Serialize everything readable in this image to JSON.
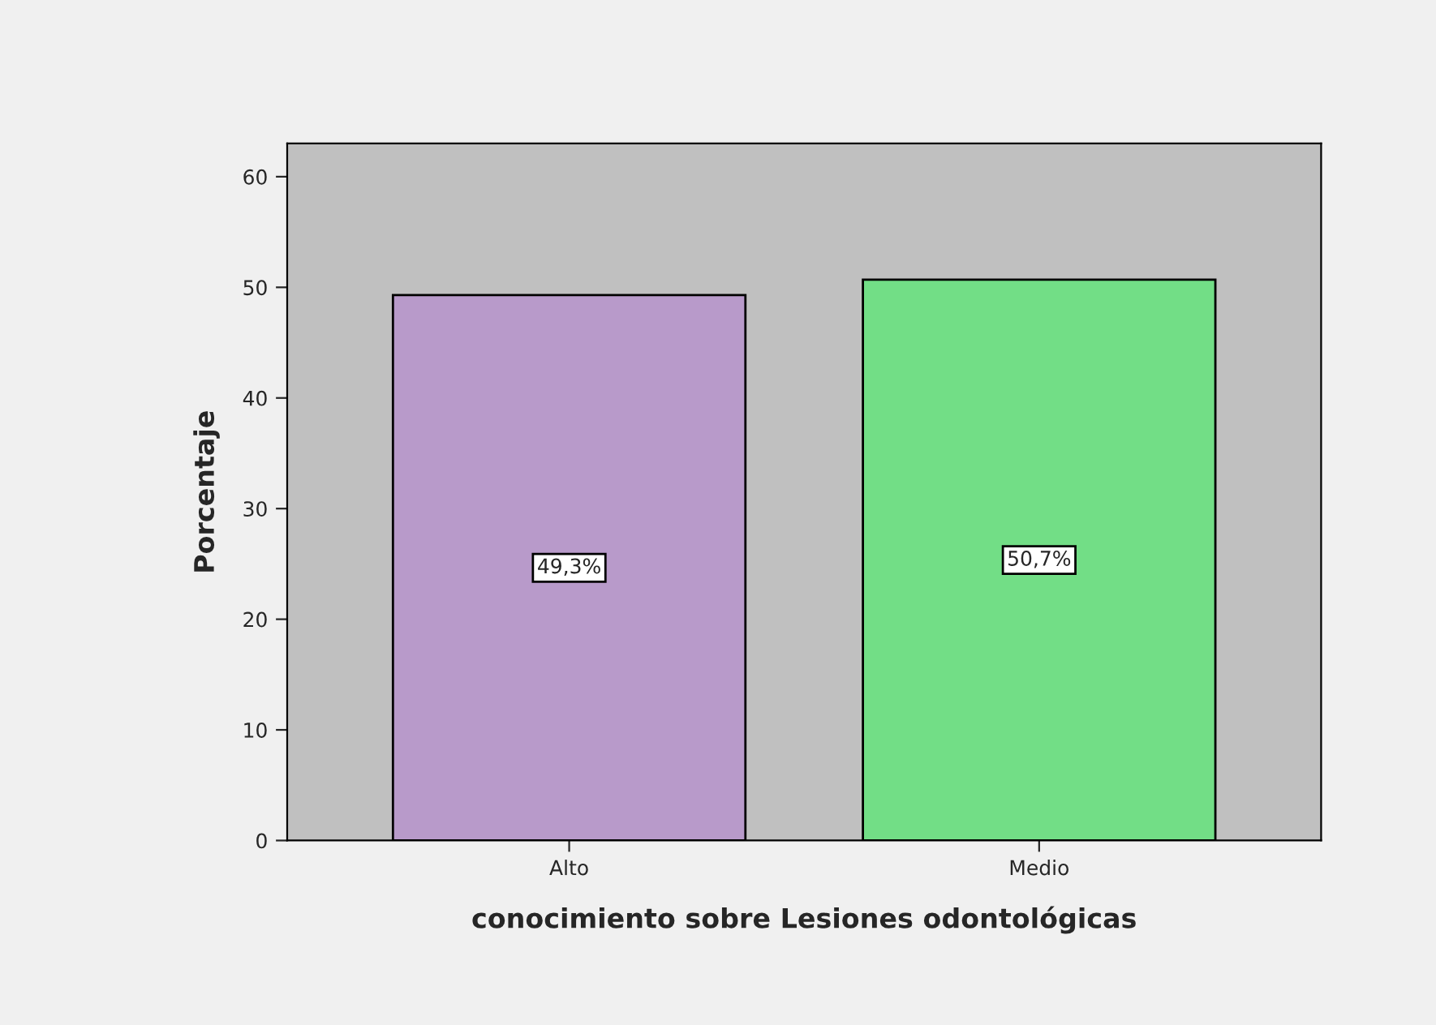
{
  "chart_data": {
    "type": "bar",
    "xlabel": "conocimiento sobre Lesiones odontológicas",
    "ylabel": "Porcentaje",
    "categories": [
      "Alto",
      "Medio"
    ],
    "values": [
      49.3,
      50.7
    ],
    "colors": [
      "#b89aca",
      "#72de86"
    ],
    "value_labels": [
      "49,3%",
      "50,7%"
    ],
    "ylim": [
      0,
      63
    ],
    "yticks": [
      0,
      10,
      20,
      30,
      40,
      50,
      60
    ],
    "grid": false,
    "legend": false
  }
}
